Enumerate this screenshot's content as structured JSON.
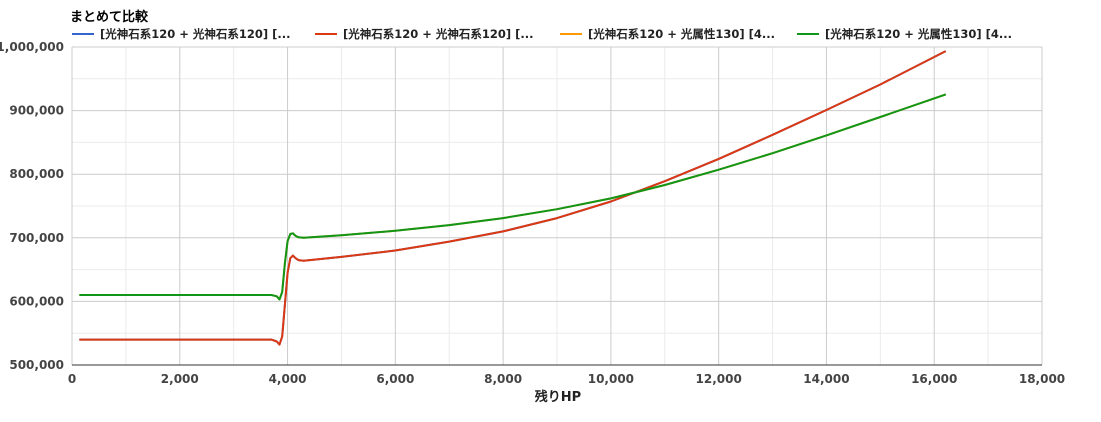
{
  "chart_data": {
    "type": "line",
    "title": "まとめて比較",
    "xlabel": "残りHP",
    "ylabel": "",
    "xlim": [
      0,
      18000
    ],
    "ylim": [
      500000,
      1000000
    ],
    "x_ticks": [
      0,
      2000,
      4000,
      6000,
      8000,
      10000,
      12000,
      14000,
      16000,
      18000
    ],
    "y_ticks": [
      500000,
      600000,
      700000,
      800000,
      900000,
      1000000
    ],
    "x_tick_labels": [
      "0",
      "2,000",
      "4,000",
      "6,000",
      "8,000",
      "10,000",
      "12,000",
      "14,000",
      "16,000",
      "18,000"
    ],
    "y_tick_labels": [
      "500,000",
      "600,000",
      "700,000",
      "800,000",
      "900,000",
      "1,000,000"
    ],
    "grid": true,
    "legend_position": "top",
    "series": [
      {
        "name": "[光神石系120 + 光神石系120] [...",
        "color": "#3366cc",
        "x": [
          150,
          1000,
          2000,
          3000,
          3700,
          3800,
          3850,
          3900,
          3950,
          4000,
          4050,
          4100,
          4150,
          4200,
          4300,
          5000,
          6000,
          7000,
          8000,
          9000,
          10000,
          11000,
          12000,
          13000,
          14000,
          15000,
          16200
        ],
        "y": [
          540000,
          540000,
          540000,
          540000,
          540000,
          537000,
          532000,
          545000,
          595000,
          645000,
          668000,
          672000,
          668000,
          665000,
          664000,
          670000,
          680000,
          694000,
          710000,
          731000,
          757000,
          789000,
          824000,
          862000,
          901000,
          941000,
          993000
        ]
      },
      {
        "name": "[光神石系120 + 光神石系120] [...",
        "color": "#dc3912",
        "x": [
          150,
          1000,
          2000,
          3000,
          3700,
          3800,
          3850,
          3900,
          3950,
          4000,
          4050,
          4100,
          4150,
          4200,
          4300,
          5000,
          6000,
          7000,
          8000,
          9000,
          10000,
          11000,
          12000,
          13000,
          14000,
          15000,
          16200
        ],
        "y": [
          540000,
          540000,
          540000,
          540000,
          540000,
          537000,
          532000,
          545000,
          595000,
          645000,
          668000,
          672000,
          668000,
          665000,
          664000,
          670000,
          680000,
          694000,
          710000,
          731000,
          757000,
          789000,
          824000,
          862000,
          901000,
          941000,
          993000
        ]
      },
      {
        "name": "[光神石系120 + 光属性130] [4...",
        "color": "#ff9900",
        "x": [
          150,
          1000,
          2000,
          3000,
          3700,
          3800,
          3850,
          3900,
          3950,
          4000,
          4050,
          4100,
          4150,
          4200,
          4300,
          5000,
          6000,
          7000,
          8000,
          9000,
          10000,
          11000,
          12000,
          13000,
          14000,
          15000,
          16200
        ],
        "y": [
          610000,
          610000,
          610000,
          610000,
          610000,
          608000,
          603000,
          615000,
          660000,
          695000,
          706000,
          707000,
          703000,
          701000,
          700000,
          704000,
          711000,
          720000,
          731000,
          745000,
          762000,
          783000,
          807000,
          833000,
          861000,
          890000,
          925000
        ]
      },
      {
        "name": "[光神石系120 + 光属性130] [4...",
        "color": "#109618",
        "x": [
          150,
          1000,
          2000,
          3000,
          3700,
          3800,
          3850,
          3900,
          3950,
          4000,
          4050,
          4100,
          4150,
          4200,
          4300,
          5000,
          6000,
          7000,
          8000,
          9000,
          10000,
          11000,
          12000,
          13000,
          14000,
          15000,
          16200
        ],
        "y": [
          610000,
          610000,
          610000,
          610000,
          610000,
          608000,
          603000,
          615000,
          660000,
          695000,
          706000,
          707000,
          703000,
          701000,
          700000,
          704000,
          711000,
          720000,
          731000,
          745000,
          762000,
          783000,
          807000,
          833000,
          861000,
          890000,
          925000
        ]
      }
    ]
  }
}
